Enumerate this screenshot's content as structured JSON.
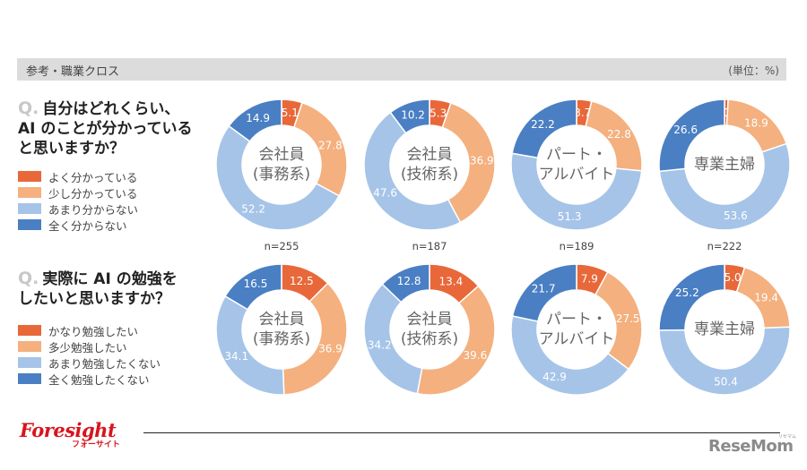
{
  "header": {
    "title": "参考・職業クロス",
    "unit": "(単位：%)"
  },
  "colors": {
    "very": "#e8683a",
    "somewhat": "#f4b07e",
    "not_much": "#a6c4e8",
    "not_at_all": "#4a7fc3"
  },
  "questions": [
    {
      "q_mark": "Q.",
      "text_lines": [
        "自分はどれくらい、",
        "AI のことが分かっている",
        "と思いますか？"
      ],
      "legend": [
        "よく分かっている",
        "少し分かっている",
        "あまり分からない",
        "全く分からない"
      ]
    },
    {
      "q_mark": "Q.",
      "text_lines": [
        "実際に AI の勉強を",
        "したいと思いますか？"
      ],
      "legend": [
        "かなり勉強したい",
        "多少勉強したい",
        "あまり勉強したくない",
        "全く勉強したくない"
      ]
    }
  ],
  "groups": [
    {
      "label_lines": [
        "会社員",
        "(事務系)"
      ],
      "n": "n=255"
    },
    {
      "label_lines": [
        "会社員",
        "(技術系)"
      ],
      "n": "n=187"
    },
    {
      "label_lines": [
        "パート・",
        "アルバイト"
      ],
      "n": "n=189"
    },
    {
      "label_lines": [
        "専業主婦"
      ],
      "n": "n=222"
    }
  ],
  "chart_data": [
    {
      "type": "pie",
      "variant": "donut",
      "title": "自分はどれくらい、AI のことが分かっていると思いますか？",
      "unit": "%",
      "categories": [
        "よく分かっている",
        "少し分かっている",
        "あまり分からない",
        "全く分からない"
      ],
      "series": [
        {
          "name": "会社員(事務系)",
          "n": 255,
          "values": [
            5.1,
            27.8,
            52.2,
            14.9
          ]
        },
        {
          "name": "会社員(技術系)",
          "n": 187,
          "values": [
            5.3,
            36.9,
            47.6,
            10.2
          ]
        },
        {
          "name": "パート・アルバイト",
          "n": 189,
          "values": [
            3.7,
            22.8,
            51.3,
            22.2
          ]
        },
        {
          "name": "専業主婦",
          "n": 222,
          "values": [
            0.9,
            18.9,
            53.6,
            26.6
          ]
        }
      ]
    },
    {
      "type": "pie",
      "variant": "donut",
      "title": "実際に AI の勉強をしたいと思いますか？",
      "unit": "%",
      "categories": [
        "かなり勉強したい",
        "多少勉強したい",
        "あまり勉強したくない",
        "全く勉強したくない"
      ],
      "series": [
        {
          "name": "会社員(事務系)",
          "n": 255,
          "values": [
            12.5,
            36.9,
            34.1,
            16.5
          ]
        },
        {
          "name": "会社員(技術系)",
          "n": 187,
          "values": [
            13.4,
            39.6,
            34.2,
            12.8
          ]
        },
        {
          "name": "パート・アルバイト",
          "n": 189,
          "values": [
            7.9,
            27.5,
            42.9,
            21.7
          ]
        },
        {
          "name": "専業主婦",
          "n": 222,
          "values": [
            5.0,
            19.4,
            50.4,
            25.2
          ]
        }
      ]
    }
  ],
  "footer": {
    "logo_main": "Foresight",
    "logo_sub": "フォーサイト",
    "brand": "ReseMom",
    "brand_sup": "リセマム"
  }
}
